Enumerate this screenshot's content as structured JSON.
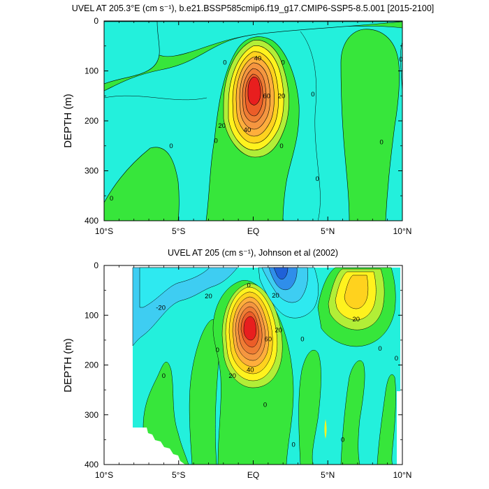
{
  "chart_data": [
    {
      "type": "contour",
      "title": "UVEL AT 205.3°E (cm s⁻¹), b.e21.BSSP585cmip6.f19_g17.CMIP6-SSP5-8.5.001 [2015-2100]",
      "xlabel": "",
      "ylabel": "DEPTH (m)",
      "x_ticks": [
        "10°S",
        "5°S",
        "EQ",
        "5°N",
        "10°N"
      ],
      "x_values": [
        -10,
        -5,
        0,
        5,
        10
      ],
      "y_ticks": [
        "0",
        "100",
        "200",
        "300",
        "400"
      ],
      "y_values": [
        0,
        100,
        200,
        300,
        400
      ],
      "ylim": [
        400,
        0
      ],
      "contour_interval": 10,
      "core": {
        "lat": 0,
        "depth": 135,
        "max_speed_approx": 90
      },
      "contour_labels": [
        {
          "text": "40",
          "lat": 0.3,
          "depth": 75
        },
        {
          "text": "60",
          "lat": 0.9,
          "depth": 150
        },
        {
          "text": "20",
          "lat": 1.9,
          "depth": 150
        },
        {
          "text": "40",
          "lat": -0.4,
          "depth": 218
        },
        {
          "text": "20",
          "lat": -2.1,
          "depth": 210
        },
        {
          "text": "0",
          "lat": -1.9,
          "depth": 83
        },
        {
          "text": "0",
          "lat": 2.0,
          "depth": 83
        },
        {
          "text": "0",
          "lat": 4.0,
          "depth": 147
        },
        {
          "text": "0",
          "lat": 4.3,
          "depth": 316
        },
        {
          "text": "0",
          "lat": 1.9,
          "depth": 250
        },
        {
          "text": "0",
          "lat": -2.5,
          "depth": 240
        },
        {
          "text": "0",
          "lat": -5.5,
          "depth": 250
        },
        {
          "text": "0",
          "lat": -9.5,
          "depth": 355
        },
        {
          "text": "0",
          "lat": 8.6,
          "depth": 243
        },
        {
          "text": "0",
          "lat": 9.9,
          "depth": 77
        }
      ]
    },
    {
      "type": "contour",
      "title": "UVEL AT 205 (cm s⁻¹), Johnson et al (2002)",
      "xlabel": "",
      "ylabel": "DEPTH (m)",
      "x_ticks": [
        "10°S",
        "5°S",
        "EQ",
        "5°N",
        "10°N"
      ],
      "x_values": [
        -10,
        -5,
        0,
        5,
        10
      ],
      "y_ticks": [
        "0",
        "100",
        "200",
        "300",
        "400"
      ],
      "y_values": [
        0,
        100,
        200,
        300,
        400
      ],
      "ylim": [
        400,
        0
      ],
      "data_lat_range": [
        -8,
        9.8
      ],
      "contour_interval": 10,
      "core": {
        "lat": 0,
        "depth": 130,
        "max_speed_approx": 90
      },
      "contour_labels": [
        {
          "text": "0",
          "lat": -0.3,
          "depth": 40
        },
        {
          "text": "20",
          "lat": 1.5,
          "depth": 60
        },
        {
          "text": "-20",
          "lat": -6.2,
          "depth": 85
        },
        {
          "text": "20",
          "lat": -3.0,
          "depth": 62
        },
        {
          "text": "20",
          "lat": 1.7,
          "depth": 130
        },
        {
          "text": "60",
          "lat": 1.0,
          "depth": 148
        },
        {
          "text": "40",
          "lat": -0.2,
          "depth": 210
        },
        {
          "text": "20",
          "lat": -1.4,
          "depth": 222
        },
        {
          "text": "20",
          "lat": 6.9,
          "depth": 108
        },
        {
          "text": "0",
          "lat": 3.3,
          "depth": 148
        },
        {
          "text": "0",
          "lat": -2.4,
          "depth": 170
        },
        {
          "text": "0",
          "lat": -6.0,
          "depth": 222
        },
        {
          "text": "0",
          "lat": 0.8,
          "depth": 280
        },
        {
          "text": "0",
          "lat": 8.5,
          "depth": 167
        },
        {
          "text": "0",
          "lat": 9.6,
          "depth": 187
        },
        {
          "text": "0",
          "lat": 6.0,
          "depth": 350
        },
        {
          "text": "0",
          "lat": 2.7,
          "depth": 360
        }
      ]
    }
  ],
  "colors": {
    "cyan": "#23f0dc",
    "bright_cyan": "#2ee9f0",
    "sky_blue": "#3ecdf2",
    "blue": "#2f8eea",
    "deep_blue": "#1f61d8",
    "light_green": "#3ee65f",
    "green": "#37e63b",
    "yellow_green": "#b2ee37",
    "yellow": "#fff21e",
    "gold": "#ffd21e",
    "orange_light": "#ffae3c",
    "orange": "#f59640",
    "orange_dark": "#ef7c34",
    "red_orange": "#ec5d28",
    "red": "#e81e1e"
  }
}
